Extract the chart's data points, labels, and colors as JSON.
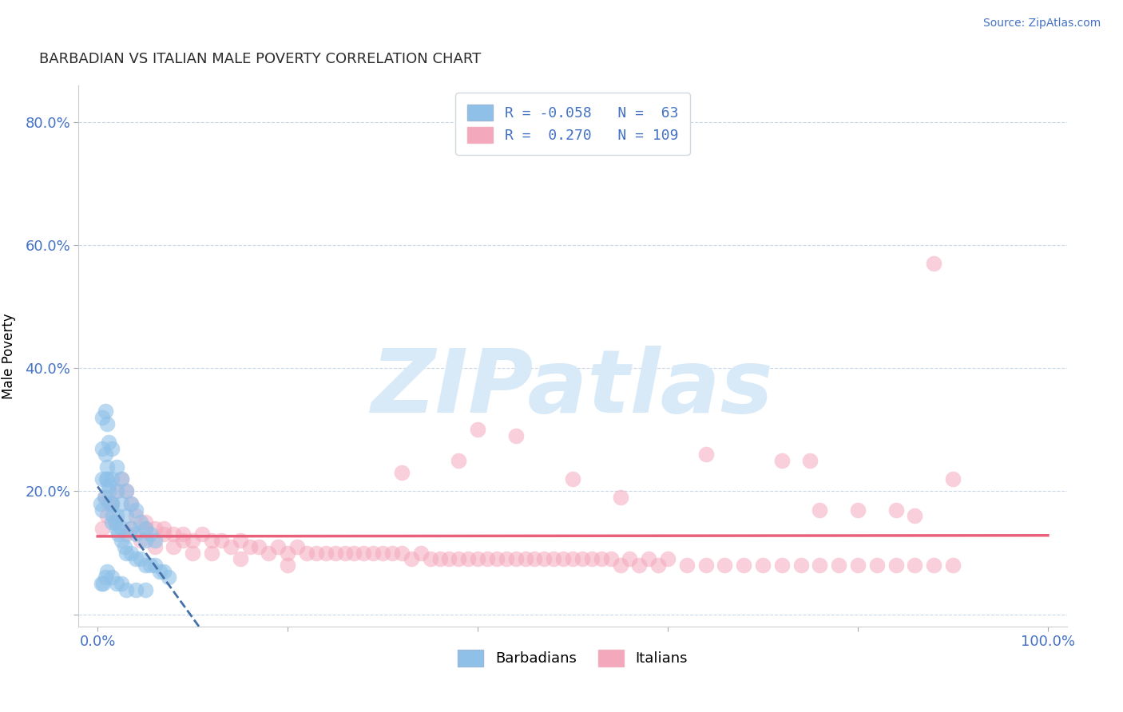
{
  "title": "BARBADIAN VS ITALIAN MALE POVERTY CORRELATION CHART",
  "source": "Source: ZipAtlas.com",
  "ylabel": "Male Poverty",
  "xlim": [
    -2.0,
    102.0
  ],
  "ylim": [
    -0.02,
    0.86
  ],
  "xticks": [
    0,
    20,
    40,
    60,
    80,
    100
  ],
  "xticklabels": [
    "0.0%",
    "",
    "",
    "",
    "",
    "100.0%"
  ],
  "yticks": [
    0.0,
    0.2,
    0.4,
    0.6,
    0.8
  ],
  "yticklabels": [
    "",
    "20.0%",
    "40.0%",
    "60.0%",
    "80.0%"
  ],
  "barbadian_R": -0.058,
  "barbadian_N": 63,
  "italian_R": 0.27,
  "italian_N": 109,
  "blue_color": "#8ec0e8",
  "pink_color": "#f4a8bc",
  "blue_line_color": "#4472a8",
  "pink_line_color": "#e8607a",
  "watermark_color": "#d8eaf8",
  "watermark_text": "ZIPatlas",
  "legend_text_color": "#4472c4",
  "title_color": "#2c2c2c",
  "source_color": "#4472c4",
  "tick_color": "#4472c4",
  "grid_color": "#c8d8e8",
  "barbadian_x": [
    0.5,
    0.5,
    0.5,
    0.8,
    0.8,
    1.0,
    1.0,
    1.2,
    1.2,
    1.5,
    1.5,
    1.5,
    1.5,
    2.0,
    2.0,
    2.0,
    2.5,
    2.5,
    2.5,
    3.0,
    3.0,
    3.5,
    3.5,
    4.0,
    4.0,
    4.5,
    5.0,
    5.0,
    5.5,
    6.0,
    0.3,
    0.5,
    0.7,
    0.9,
    1.0,
    1.2,
    1.4,
    1.6,
    1.8,
    2.0,
    2.2,
    2.5,
    2.8,
    3.0,
    3.5,
    4.0,
    4.5,
    5.0,
    5.5,
    6.0,
    6.5,
    7.0,
    7.5,
    0.4,
    0.6,
    0.8,
    1.0,
    1.5,
    2.0,
    2.5,
    3.0,
    4.0,
    5.0
  ],
  "barbadian_y": [
    0.32,
    0.27,
    0.22,
    0.33,
    0.26,
    0.31,
    0.22,
    0.28,
    0.21,
    0.27,
    0.22,
    0.18,
    0.15,
    0.24,
    0.2,
    0.16,
    0.22,
    0.18,
    0.14,
    0.2,
    0.16,
    0.18,
    0.14,
    0.17,
    0.13,
    0.15,
    0.14,
    0.12,
    0.13,
    0.12,
    0.18,
    0.17,
    0.19,
    0.22,
    0.24,
    0.2,
    0.18,
    0.16,
    0.15,
    0.14,
    0.13,
    0.12,
    0.11,
    0.1,
    0.1,
    0.09,
    0.09,
    0.08,
    0.08,
    0.08,
    0.07,
    0.07,
    0.06,
    0.05,
    0.05,
    0.06,
    0.07,
    0.06,
    0.05,
    0.05,
    0.04,
    0.04,
    0.04
  ],
  "italian_x": [
    0.5,
    1.0,
    1.5,
    2.0,
    2.5,
    3.0,
    3.5,
    4.0,
    5.0,
    6.0,
    7.0,
    8.0,
    9.0,
    10.0,
    12.0,
    14.0,
    16.0,
    18.0,
    20.0,
    22.0,
    24.0,
    26.0,
    28.0,
    30.0,
    32.0,
    34.0,
    36.0,
    38.0,
    40.0,
    42.0,
    44.0,
    46.0,
    48.0,
    50.0,
    52.0,
    54.0,
    56.0,
    58.0,
    60.0,
    62.0,
    64.0,
    66.0,
    68.0,
    70.0,
    72.0,
    74.0,
    76.0,
    78.0,
    80.0,
    82.0,
    84.0,
    86.0,
    88.0,
    90.0,
    3.0,
    5.0,
    7.0,
    9.0,
    11.0,
    13.0,
    15.0,
    17.0,
    19.0,
    21.0,
    23.0,
    25.0,
    27.0,
    29.0,
    31.0,
    33.0,
    35.0,
    37.0,
    39.0,
    41.0,
    43.0,
    45.0,
    47.0,
    49.0,
    51.0,
    53.0,
    55.0,
    57.0,
    59.0,
    44.0,
    32.0,
    38.0,
    75.0,
    80.0,
    86.0,
    90.0,
    76.0,
    84.0,
    40.0,
    50.0,
    0.8,
    1.2,
    2.0,
    3.5,
    4.5,
    6.0,
    8.0,
    10.0,
    12.0,
    15.0,
    20.0,
    55.0,
    64.0,
    72.0,
    88.0
  ],
  "italian_y": [
    0.14,
    0.16,
    0.18,
    0.2,
    0.22,
    0.2,
    0.18,
    0.16,
    0.15,
    0.14,
    0.13,
    0.13,
    0.12,
    0.12,
    0.12,
    0.11,
    0.11,
    0.1,
    0.1,
    0.1,
    0.1,
    0.1,
    0.1,
    0.1,
    0.1,
    0.1,
    0.09,
    0.09,
    0.09,
    0.09,
    0.09,
    0.09,
    0.09,
    0.09,
    0.09,
    0.09,
    0.09,
    0.09,
    0.09,
    0.08,
    0.08,
    0.08,
    0.08,
    0.08,
    0.08,
    0.08,
    0.08,
    0.08,
    0.08,
    0.08,
    0.08,
    0.08,
    0.08,
    0.08,
    0.13,
    0.14,
    0.14,
    0.13,
    0.13,
    0.12,
    0.12,
    0.11,
    0.11,
    0.11,
    0.1,
    0.1,
    0.1,
    0.1,
    0.1,
    0.09,
    0.09,
    0.09,
    0.09,
    0.09,
    0.09,
    0.09,
    0.09,
    0.09,
    0.09,
    0.09,
    0.08,
    0.08,
    0.08,
    0.29,
    0.23,
    0.25,
    0.25,
    0.17,
    0.16,
    0.22,
    0.17,
    0.17,
    0.3,
    0.22,
    0.19,
    0.18,
    0.15,
    0.14,
    0.12,
    0.11,
    0.11,
    0.1,
    0.1,
    0.09,
    0.08,
    0.19,
    0.26,
    0.25,
    0.57
  ]
}
